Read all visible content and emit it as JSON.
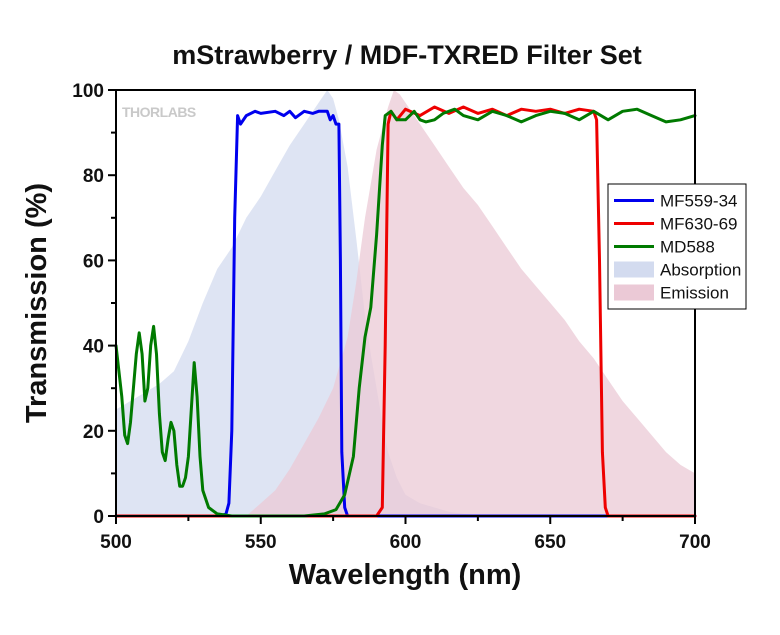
{
  "chart_data": {
    "type": "line",
    "title": "mStrawberry / MDF-TXRED Filter Set",
    "xlabel": "Wavelength (nm)",
    "ylabel": "Transmission (%)",
    "xlim": [
      500,
      700
    ],
    "ylim": [
      0,
      100
    ],
    "x_ticks": [
      500,
      550,
      600,
      650,
      700
    ],
    "y_ticks": [
      0,
      20,
      40,
      60,
      80,
      100
    ],
    "grid": false,
    "legend_position": "right",
    "watermark": "THORLABS",
    "series": [
      {
        "name": "MF559-34",
        "kind": "line",
        "color": "#0000ee",
        "points": [
          [
            500,
            0
          ],
          [
            536,
            0
          ],
          [
            538,
            0.5
          ],
          [
            539,
            3
          ],
          [
            540,
            20
          ],
          [
            541,
            70
          ],
          [
            542,
            94
          ],
          [
            543,
            92
          ],
          [
            545,
            94
          ],
          [
            548,
            95
          ],
          [
            550,
            94.5
          ],
          [
            555,
            95
          ],
          [
            558,
            94
          ],
          [
            560,
            95
          ],
          [
            562,
            93.5
          ],
          [
            565,
            95
          ],
          [
            568,
            94.5
          ],
          [
            570,
            95
          ],
          [
            573,
            95
          ],
          [
            574,
            93
          ],
          [
            575,
            94
          ],
          [
            576,
            92
          ],
          [
            577,
            92
          ],
          [
            577.5,
            60
          ],
          [
            578,
            15
          ],
          [
            579,
            2
          ],
          [
            580,
            0
          ],
          [
            700,
            0
          ]
        ]
      },
      {
        "name": "MF630-69",
        "kind": "line",
        "color": "#ee0000",
        "points": [
          [
            500,
            0
          ],
          [
            590,
            0
          ],
          [
            592,
            2
          ],
          [
            593,
            40
          ],
          [
            594,
            92
          ],
          [
            595,
            95
          ],
          [
            597,
            93
          ],
          [
            600,
            95.5
          ],
          [
            605,
            94
          ],
          [
            610,
            96
          ],
          [
            615,
            94.5
          ],
          [
            620,
            96
          ],
          [
            625,
            94.5
          ],
          [
            630,
            95.5
          ],
          [
            635,
            94
          ],
          [
            640,
            95.5
          ],
          [
            645,
            95
          ],
          [
            650,
            95.5
          ],
          [
            655,
            94.5
          ],
          [
            660,
            95.5
          ],
          [
            665,
            95
          ],
          [
            666,
            93
          ],
          [
            667,
            60
          ],
          [
            668,
            15
          ],
          [
            669,
            2
          ],
          [
            670,
            0
          ],
          [
            700,
            0
          ]
        ]
      },
      {
        "name": "MD588",
        "kind": "line",
        "color": "#007a00",
        "points": [
          [
            500,
            40
          ],
          [
            502,
            28
          ],
          [
            503,
            19
          ],
          [
            504,
            17
          ],
          [
            505,
            22
          ],
          [
            507,
            38
          ],
          [
            508,
            43
          ],
          [
            509,
            38
          ],
          [
            510,
            27
          ],
          [
            511,
            30
          ],
          [
            512,
            40
          ],
          [
            513,
            44.5
          ],
          [
            514,
            38
          ],
          [
            515,
            24
          ],
          [
            516,
            15
          ],
          [
            517,
            13
          ],
          [
            518,
            18
          ],
          [
            519,
            22
          ],
          [
            520,
            20
          ],
          [
            521,
            12
          ],
          [
            522,
            7
          ],
          [
            523,
            7
          ],
          [
            524,
            9
          ],
          [
            525,
            14
          ],
          [
            526,
            25
          ],
          [
            527,
            36
          ],
          [
            528,
            28
          ],
          [
            529,
            14
          ],
          [
            530,
            6
          ],
          [
            532,
            2
          ],
          [
            535,
            0.5
          ],
          [
            540,
            0
          ],
          [
            565,
            0
          ],
          [
            572,
            0.5
          ],
          [
            576,
            1.5
          ],
          [
            579,
            5
          ],
          [
            582,
            14
          ],
          [
            584,
            30
          ],
          [
            586,
            42
          ],
          [
            588,
            49
          ],
          [
            590,
            66
          ],
          [
            592,
            87
          ],
          [
            593,
            94
          ],
          [
            595,
            95
          ],
          [
            597,
            93
          ],
          [
            600,
            93
          ],
          [
            603,
            95
          ],
          [
            605,
            93
          ],
          [
            607,
            92.5
          ],
          [
            610,
            93
          ],
          [
            613,
            94.5
          ],
          [
            617,
            95.5
          ],
          [
            620,
            94
          ],
          [
            625,
            93
          ],
          [
            630,
            95
          ],
          [
            635,
            94
          ],
          [
            640,
            92.5
          ],
          [
            645,
            94
          ],
          [
            650,
            95
          ],
          [
            655,
            94.5
          ],
          [
            660,
            93
          ],
          [
            665,
            95
          ],
          [
            670,
            93
          ],
          [
            675,
            95
          ],
          [
            680,
            95.5
          ],
          [
            685,
            94
          ],
          [
            690,
            92.5
          ],
          [
            695,
            93
          ],
          [
            700,
            94
          ]
        ]
      },
      {
        "name": "Absorption",
        "kind": "area",
        "color": "#d3dbef",
        "points": [
          [
            500,
            25
          ],
          [
            505,
            27
          ],
          [
            510,
            29
          ],
          [
            515,
            31
          ],
          [
            520,
            34
          ],
          [
            525,
            41
          ],
          [
            530,
            50
          ],
          [
            535,
            58
          ],
          [
            540,
            63
          ],
          [
            545,
            70
          ],
          [
            550,
            75
          ],
          [
            555,
            81
          ],
          [
            560,
            87
          ],
          [
            565,
            92
          ],
          [
            570,
            97
          ],
          [
            573,
            100
          ],
          [
            575,
            98
          ],
          [
            577,
            93
          ],
          [
            580,
            82
          ],
          [
            583,
            65
          ],
          [
            586,
            47
          ],
          [
            588,
            38
          ],
          [
            590,
            30
          ],
          [
            592,
            22
          ],
          [
            594,
            15
          ],
          [
            597,
            9
          ],
          [
            600,
            5
          ],
          [
            605,
            3
          ],
          [
            610,
            2
          ],
          [
            615,
            1
          ],
          [
            620,
            0.5
          ],
          [
            630,
            0
          ],
          [
            700,
            0
          ]
        ]
      },
      {
        "name": "Emission",
        "kind": "area",
        "color": "#ebc9d6",
        "points": [
          [
            545,
            0
          ],
          [
            550,
            3
          ],
          [
            555,
            6
          ],
          [
            560,
            11
          ],
          [
            565,
            17
          ],
          [
            570,
            23
          ],
          [
            575,
            30
          ],
          [
            580,
            42
          ],
          [
            583,
            55
          ],
          [
            586,
            70
          ],
          [
            588,
            78
          ],
          [
            590,
            86
          ],
          [
            592,
            91
          ],
          [
            594,
            96
          ],
          [
            596,
            100
          ],
          [
            598,
            99
          ],
          [
            600,
            97
          ],
          [
            605,
            92
          ],
          [
            610,
            87
          ],
          [
            615,
            82
          ],
          [
            620,
            77
          ],
          [
            625,
            73
          ],
          [
            630,
            68
          ],
          [
            635,
            63
          ],
          [
            640,
            58
          ],
          [
            645,
            54
          ],
          [
            650,
            50
          ],
          [
            655,
            46
          ],
          [
            660,
            41
          ],
          [
            665,
            37
          ],
          [
            670,
            32
          ],
          [
            675,
            27
          ],
          [
            680,
            23
          ],
          [
            685,
            19
          ],
          [
            690,
            15
          ],
          [
            695,
            12
          ],
          [
            700,
            10
          ]
        ]
      }
    ]
  }
}
